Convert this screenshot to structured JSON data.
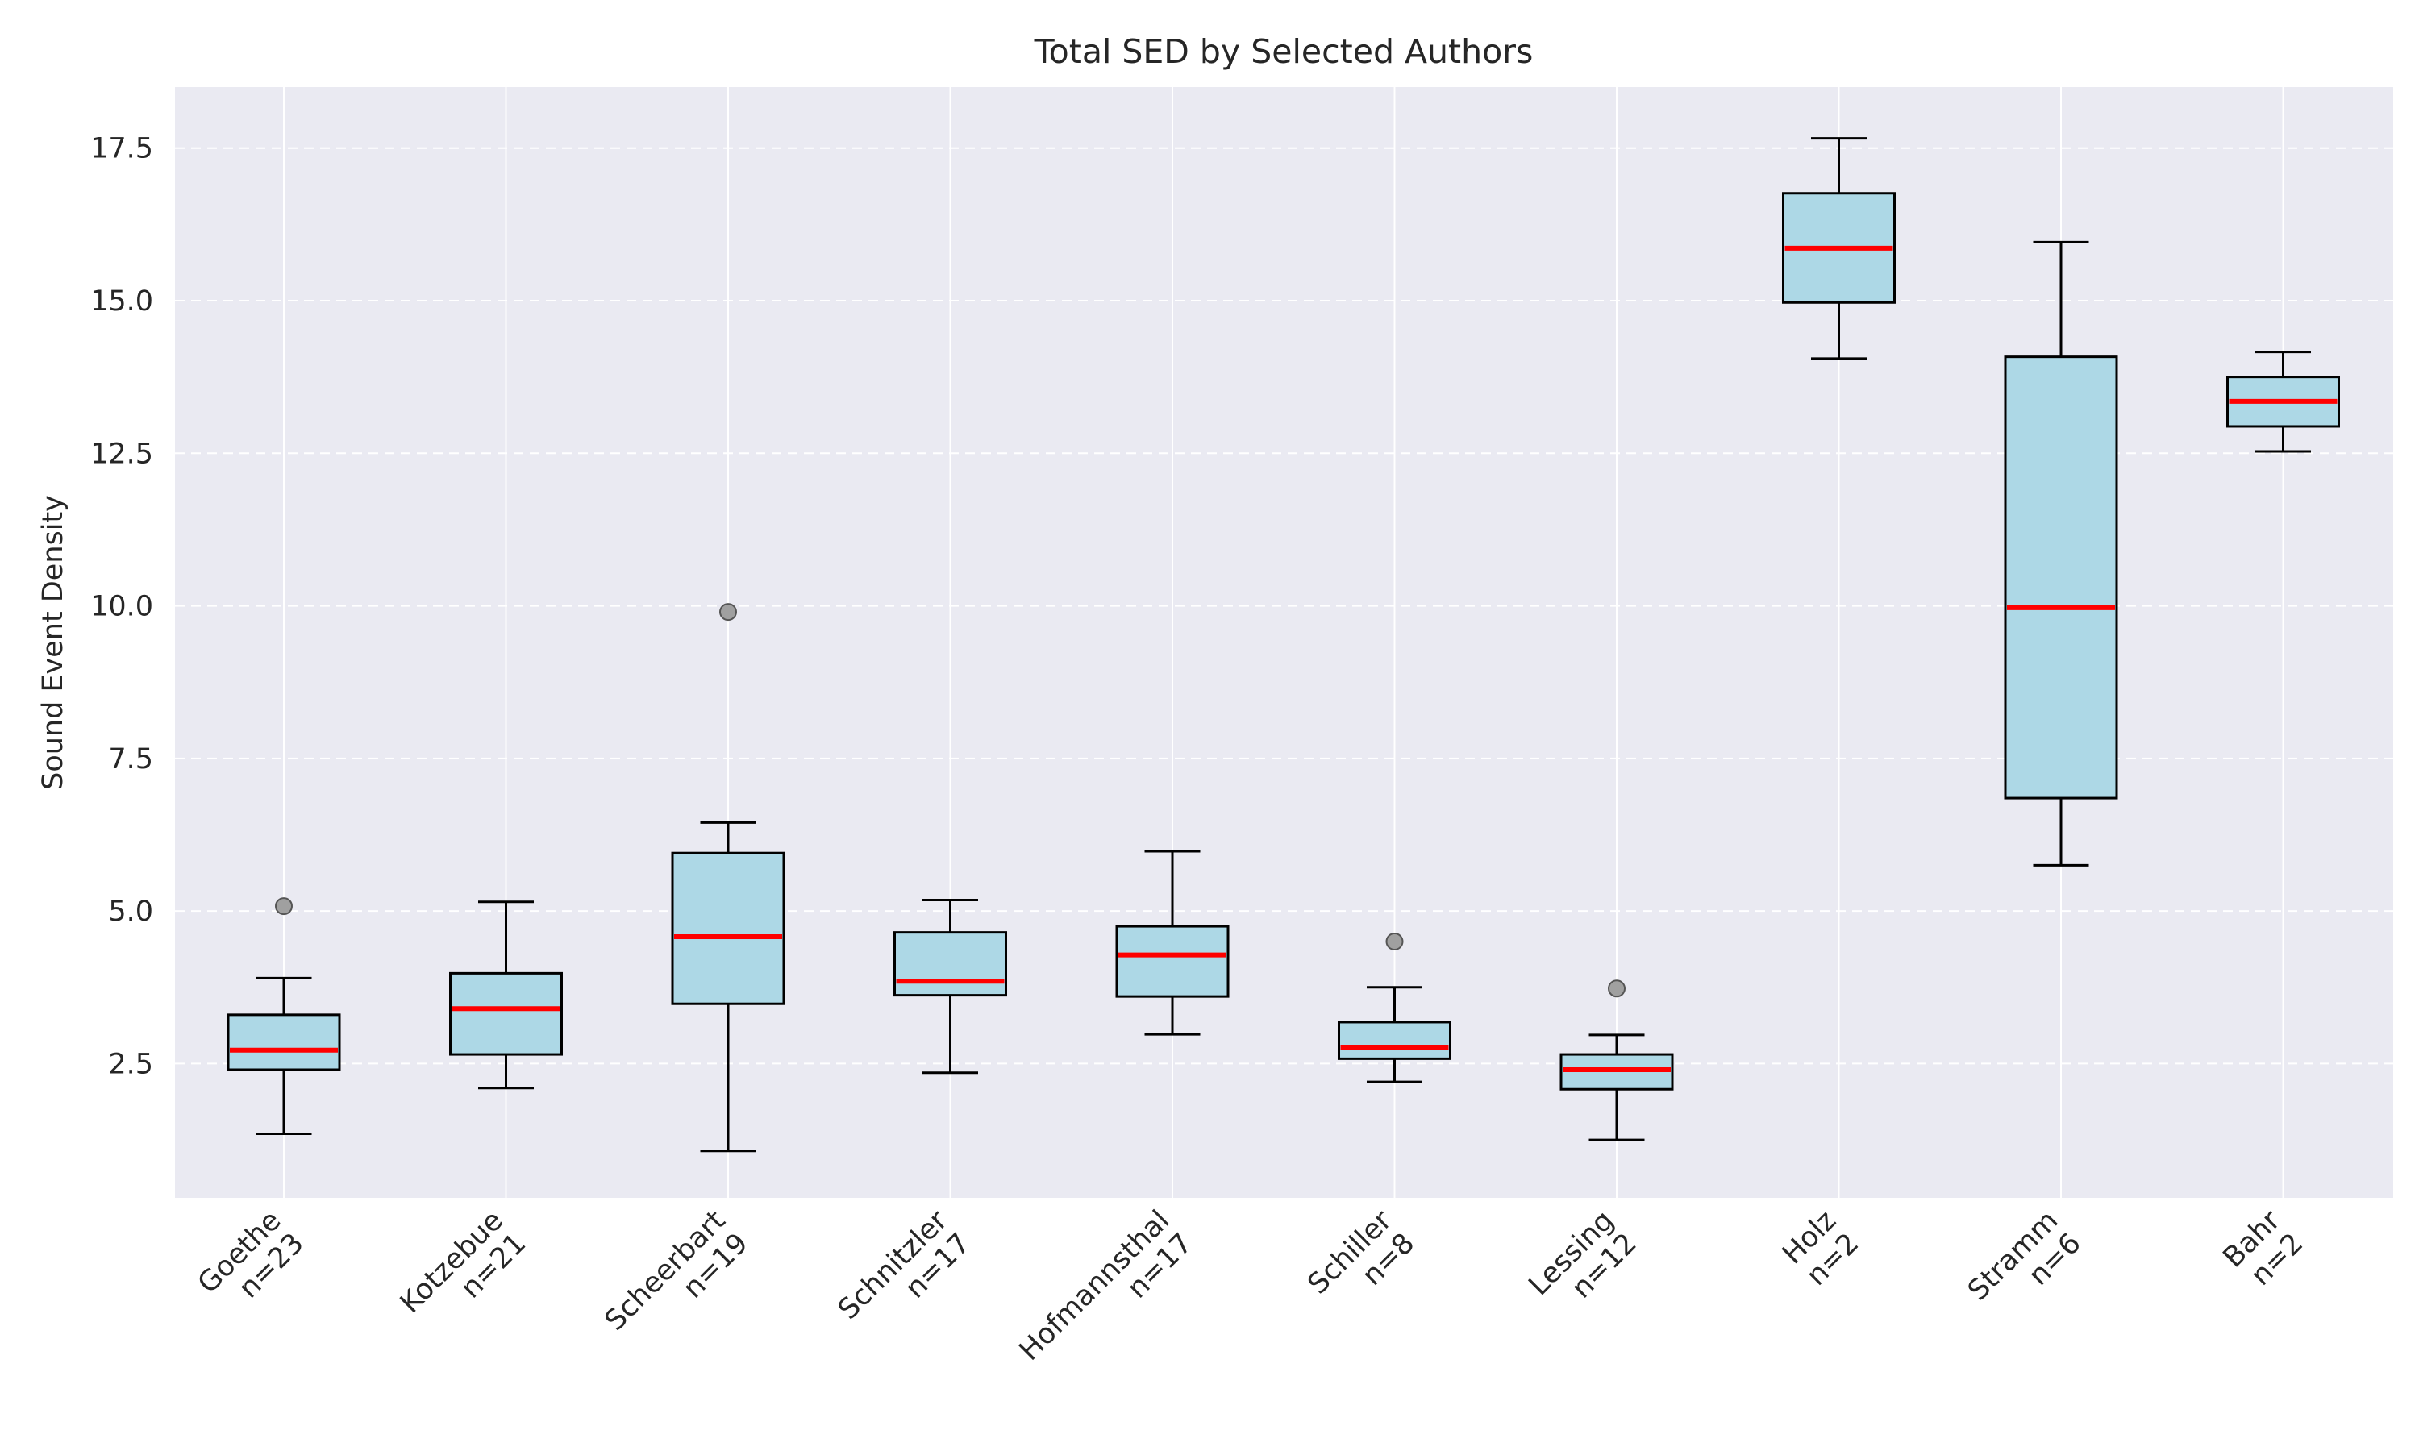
{
  "chart_data": {
    "type": "boxplot",
    "title": "Total SED by Selected Authors",
    "xlabel": "",
    "ylabel": "Sound Event Density",
    "ylim": [
      0.3,
      18.5
    ],
    "yticks": [
      2.5,
      5.0,
      7.5,
      10.0,
      12.5,
      15.0,
      17.5
    ],
    "ytick_labels": [
      "2.5",
      "5.0",
      "7.5",
      "10.0",
      "12.5",
      "15.0",
      "17.5"
    ],
    "grid": "y-dashed, x-solid",
    "colors": {
      "background": "#eaeaf2",
      "box_fill": "#add8e6",
      "box_edge": "#000000",
      "median": "#ff0000",
      "outlier": "#a0a0a0",
      "grid": "#ffffff"
    },
    "categories": [
      {
        "name": "Goethe",
        "n_label": "n=23",
        "whisker_low": 1.35,
        "q1": 2.4,
        "median": 2.72,
        "q3": 3.3,
        "whisker_high": 3.9,
        "outliers": [
          5.08
        ]
      },
      {
        "name": "Kotzebue",
        "n_label": "n=21",
        "whisker_low": 2.1,
        "q1": 2.65,
        "median": 3.4,
        "q3": 3.98,
        "whisker_high": 5.15,
        "outliers": []
      },
      {
        "name": "Scheerbart",
        "n_label": "n=19",
        "whisker_low": 1.07,
        "q1": 3.48,
        "median": 4.58,
        "q3": 5.95,
        "whisker_high": 6.45,
        "outliers": [
          9.9
        ]
      },
      {
        "name": "Schnitzler",
        "n_label": "n=17",
        "whisker_low": 2.35,
        "q1": 3.62,
        "median": 3.85,
        "q3": 4.65,
        "whisker_high": 5.18,
        "outliers": []
      },
      {
        "name": "Hofmannsthal",
        "n_label": "n=17",
        "whisker_low": 2.98,
        "q1": 3.6,
        "median": 4.28,
        "q3": 4.75,
        "whisker_high": 5.98,
        "outliers": []
      },
      {
        "name": "Schiller",
        "n_label": "n=8",
        "whisker_low": 2.2,
        "q1": 2.58,
        "median": 2.77,
        "q3": 3.18,
        "whisker_high": 3.75,
        "outliers": [
          4.5
        ]
      },
      {
        "name": "Lessing",
        "n_label": "n=12",
        "whisker_low": 1.25,
        "q1": 2.08,
        "median": 2.4,
        "q3": 2.65,
        "whisker_high": 2.97,
        "outliers": [
          3.73
        ]
      },
      {
        "name": "Holz",
        "n_label": "n=2",
        "whisker_low": 14.05,
        "q1": 14.97,
        "median": 15.86,
        "q3": 16.76,
        "whisker_high": 17.66,
        "outliers": []
      },
      {
        "name": "Stramm",
        "n_label": "n=6",
        "whisker_low": 5.75,
        "q1": 6.85,
        "median": 9.97,
        "q3": 14.08,
        "whisker_high": 15.96,
        "outliers": []
      },
      {
        "name": "Bahr",
        "n_label": "n=2",
        "whisker_low": 12.53,
        "q1": 12.94,
        "median": 13.35,
        "q3": 13.75,
        "whisker_high": 14.16,
        "outliers": []
      }
    ]
  }
}
